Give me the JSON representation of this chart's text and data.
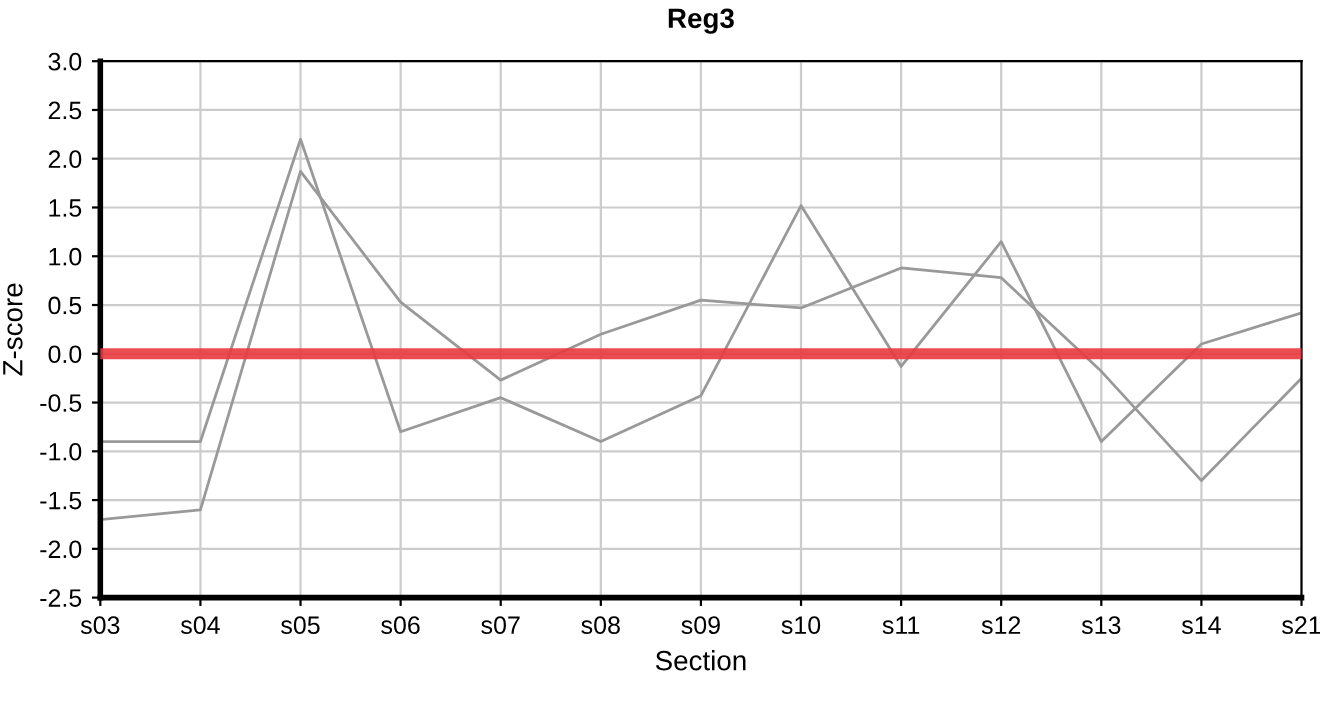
{
  "chart_data": {
    "type": "line",
    "title": "Reg3",
    "xlabel": "Section",
    "ylabel": "Z-score",
    "categories": [
      "s03",
      "s04",
      "s05",
      "s06",
      "s07",
      "s08",
      "s09",
      "s10",
      "s11",
      "s12",
      "s13",
      "s14",
      "s21"
    ],
    "series": [
      {
        "color": "#999999",
        "values": [
          -0.9,
          -0.9,
          2.2,
          -0.8,
          -0.45,
          -0.9,
          -0.43,
          1.52,
          -0.13,
          1.15,
          -0.9,
          0.1,
          0.42
        ]
      },
      {
        "color": "#999999",
        "values": [
          -1.7,
          -1.6,
          1.87,
          0.53,
          -0.27,
          0.2,
          0.55,
          0.47,
          0.88,
          0.78,
          -0.18,
          -1.3,
          -0.25
        ]
      }
    ],
    "ylim": [
      -2.5,
      3.0
    ],
    "yticks": [
      {
        "value": -2.5,
        "label": "-2.5"
      },
      {
        "value": -2.0,
        "label": "-2.0"
      },
      {
        "value": -1.5,
        "label": "-1.5"
      },
      {
        "value": -1.0,
        "label": "-1.0"
      },
      {
        "value": -0.5,
        "label": "-0.5"
      },
      {
        "value": 0.0,
        "label": "0.0"
      },
      {
        "value": 0.5,
        "label": "0.5"
      },
      {
        "value": 1.0,
        "label": "1.0"
      },
      {
        "value": 1.5,
        "label": "1.5"
      },
      {
        "value": 2.0,
        "label": "2.0"
      },
      {
        "value": 2.5,
        "label": "2.5"
      },
      {
        "value": 3.0,
        "label": "3.0"
      }
    ],
    "ref_lines": [
      {
        "axis": "y",
        "value": 0,
        "color": "#e8383d"
      }
    ],
    "grid": true,
    "legend": false,
    "marker": "none",
    "line_style": "solid"
  }
}
